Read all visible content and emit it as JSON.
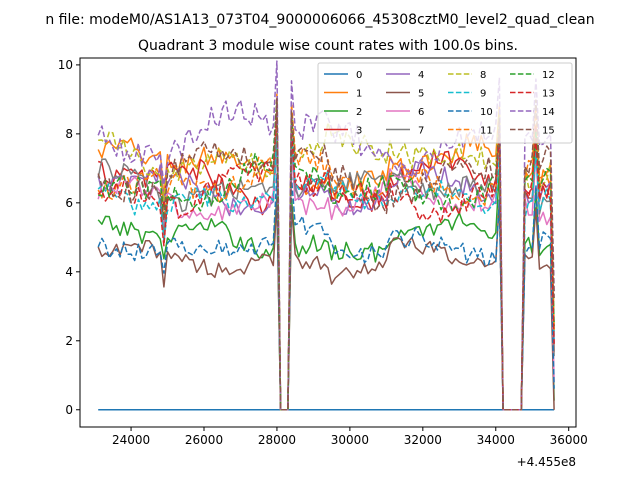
{
  "chart_data": {
    "type": "line",
    "suptitle": "n file: modeM0/AS1A13_073T04_9000006066_45308cztM0_level2_quad_clean",
    "title": "Quadrant 3 module wise count rates with 100.0s bins.",
    "xlabel": "",
    "ylabel": "",
    "offset_text": "+4.455e8",
    "xlim": [
      22600,
      36200
    ],
    "ylim": [
      -0.5,
      10.2
    ],
    "xticks": [
      24000,
      26000,
      28000,
      30000,
      32000,
      34000,
      36000
    ],
    "yticks": [
      0,
      2,
      4,
      6,
      8,
      10
    ],
    "grid": false,
    "legend": {
      "placement": "top-right",
      "columns": 4
    },
    "x_range": [
      23100,
      35600
    ],
    "x_step": 100,
    "gaps": [
      [
        28100,
        28300
      ],
      [
        34200,
        34700
      ]
    ],
    "series": [
      {
        "name": "0",
        "color": "#1f77b4",
        "dash": "solid",
        "base": 0.0,
        "amp": 0.0,
        "noise": 0.0
      },
      {
        "name": "1",
        "color": "#ff7f0e",
        "dash": "solid",
        "base": 7.0,
        "amp": 0.8,
        "noise": 0.35
      },
      {
        "name": "2",
        "color": "#2ca02c",
        "dash": "solid",
        "base": 5.0,
        "amp": 0.5,
        "noise": 0.3
      },
      {
        "name": "3",
        "color": "#d62728",
        "dash": "solid",
        "base": 6.6,
        "amp": 0.7,
        "noise": 0.35
      },
      {
        "name": "4",
        "color": "#9467bd",
        "dash": "solid",
        "base": 6.4,
        "amp": 0.6,
        "noise": 0.3
      },
      {
        "name": "5",
        "color": "#8c564b",
        "dash": "solid",
        "base": 4.4,
        "amp": 0.4,
        "noise": 0.25
      },
      {
        "name": "6",
        "color": "#e377c2",
        "dash": "solid",
        "base": 6.1,
        "amp": 0.6,
        "noise": 0.3
      },
      {
        "name": "7",
        "color": "#7f7f7f",
        "dash": "solid",
        "base": 6.5,
        "amp": 0.6,
        "noise": 0.3
      },
      {
        "name": "8",
        "color": "#bcbd22",
        "dash": "dashed",
        "base": 7.4,
        "amp": 0.8,
        "noise": 0.35
      },
      {
        "name": "9",
        "color": "#17becf",
        "dash": "dashed",
        "base": 6.3,
        "amp": 0.6,
        "noise": 0.3
      },
      {
        "name": "10",
        "color": "#1f77b4",
        "dash": "dashed",
        "base": 4.9,
        "amp": 0.5,
        "noise": 0.3
      },
      {
        "name": "11",
        "color": "#ff7f0e",
        "dash": "dashed",
        "base": 6.8,
        "amp": 0.7,
        "noise": 0.35
      },
      {
        "name": "12",
        "color": "#2ca02c",
        "dash": "dashed",
        "base": 6.6,
        "amp": 0.7,
        "noise": 0.35
      },
      {
        "name": "13",
        "color": "#d62728",
        "dash": "dashed",
        "base": 6.4,
        "amp": 0.7,
        "noise": 0.35
      },
      {
        "name": "14",
        "color": "#9467bd",
        "dash": "dashed",
        "base": 8.0,
        "amp": 0.9,
        "noise": 0.4
      },
      {
        "name": "15",
        "color": "#8c564b",
        "dash": "dashed",
        "base": 7.0,
        "amp": 0.8,
        "noise": 0.35
      }
    ]
  }
}
